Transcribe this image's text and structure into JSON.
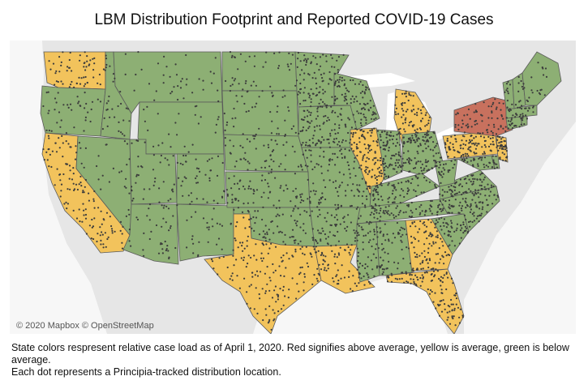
{
  "title": "LBM Distribution Footprint and Reported COVID-19 Cases",
  "attribution": "© 2020 Mapbox © OpenStreetMap",
  "caption": {
    "line1": "State colors respresent relative case load as of April 1, 2020. Red signifies above average, yellow is average, green is below average.",
    "line2": "Each dot represents a Principia-tracked distribution location."
  },
  "legend_colors": {
    "above_average": "#c8715e",
    "average": "#f2c35c",
    "below_average": "#8daf74",
    "dots": "#3c3c3c",
    "background": "#e6e6e6",
    "water": "#ffffff"
  },
  "state_case_levels": {
    "above_average": [
      "NY"
    ],
    "average": [
      "WA",
      "CA",
      "TX",
      "LA",
      "GA",
      "FL",
      "IL",
      "MI",
      "PA",
      "NJ"
    ],
    "below_average": [
      "OR",
      "ID",
      "MT",
      "WY",
      "NV",
      "UT",
      "CO",
      "AZ",
      "NM",
      "ND",
      "SD",
      "NE",
      "KS",
      "OK",
      "MN",
      "IA",
      "MO",
      "AR",
      "WI",
      "IN",
      "OH",
      "KY",
      "TN",
      "MS",
      "AL",
      "SC",
      "NC",
      "VA",
      "WV",
      "MD",
      "DE",
      "CT",
      "RI",
      "MA",
      "VT",
      "NH",
      "ME"
    ]
  }
}
